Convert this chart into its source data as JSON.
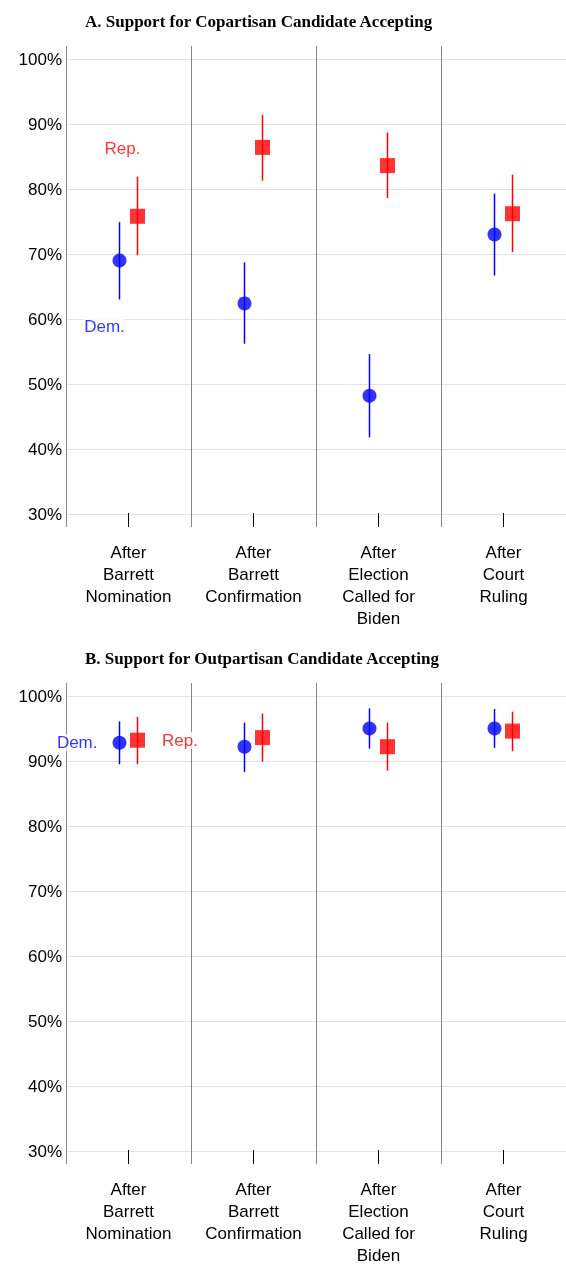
{
  "chart_data": [
    {
      "type": "scatter",
      "title": "A. Support for Copartisan Candidate Accepting",
      "categories": [
        "After Barrett Nomination",
        "After Barrett Confirmation",
        "After Election Called for Biden",
        "After Court Ruling"
      ],
      "series": [
        {
          "name": "Dem.",
          "color": "#0000ff",
          "marker": "circle",
          "values": [
            69.0,
            62.4,
            48.2,
            73.0
          ],
          "errors": [
            [
              63.0,
              74.9
            ],
            [
              56.2,
              68.7
            ],
            [
              41.8,
              54.6
            ],
            [
              66.7,
              79.3
            ]
          ]
        },
        {
          "name": "Rep.",
          "color": "#ff0000",
          "marker": "square",
          "values": [
            75.8,
            86.4,
            83.6,
            76.2
          ],
          "errors": [
            [
              69.8,
              81.9
            ],
            [
              81.3,
              91.4
            ],
            [
              78.6,
              88.7
            ],
            [
              70.3,
              82.2
            ]
          ]
        }
      ],
      "ylim": [
        28,
        102
      ],
      "yticks": [
        {
          "value": 30,
          "label": "30%"
        },
        {
          "value": 40,
          "label": "40%"
        },
        {
          "value": 50,
          "label": "50%"
        },
        {
          "value": 60,
          "label": "60%"
        },
        {
          "value": 70,
          "label": "70%"
        },
        {
          "value": 80,
          "label": "80%"
        },
        {
          "value": 90,
          "label": "90%"
        },
        {
          "value": 100,
          "label": "100%"
        }
      ],
      "grid": true,
      "legend": false
    },
    {
      "type": "scatter",
      "title": "B. Support for Outpartisan Candidate Accepting",
      "categories": [
        "After Barrett Nomination",
        "After Barrett Confirmation",
        "After Election Called for Biden",
        "After Court Ruling"
      ],
      "series": [
        {
          "name": "Dem.",
          "color": "#0000ff",
          "marker": "circle",
          "values": [
            92.8,
            92.2,
            95.0,
            95.0
          ],
          "errors": [
            [
              89.5,
              96.1
            ],
            [
              88.3,
              95.9
            ],
            [
              91.9,
              98.1
            ],
            [
              92.0,
              98.0
            ]
          ]
        },
        {
          "name": "Rep.",
          "color": "#ff0000",
          "marker": "square",
          "values": [
            93.2,
            93.6,
            92.2,
            94.6
          ],
          "errors": [
            [
              89.5,
              96.8
            ],
            [
              89.9,
              97.3
            ],
            [
              88.5,
              95.9
            ],
            [
              91.5,
              97.6
            ]
          ]
        }
      ],
      "ylim": [
        28,
        102
      ],
      "yticks": [
        {
          "value": 30,
          "label": "30%"
        },
        {
          "value": 40,
          "label": "40%"
        },
        {
          "value": 50,
          "label": "50%"
        },
        {
          "value": 60,
          "label": "60%"
        },
        {
          "value": 70,
          "label": "70%"
        },
        {
          "value": 80,
          "label": "80%"
        },
        {
          "value": 90,
          "label": "90%"
        },
        {
          "value": 100,
          "label": "100%"
        }
      ],
      "grid": true,
      "legend": false
    }
  ]
}
